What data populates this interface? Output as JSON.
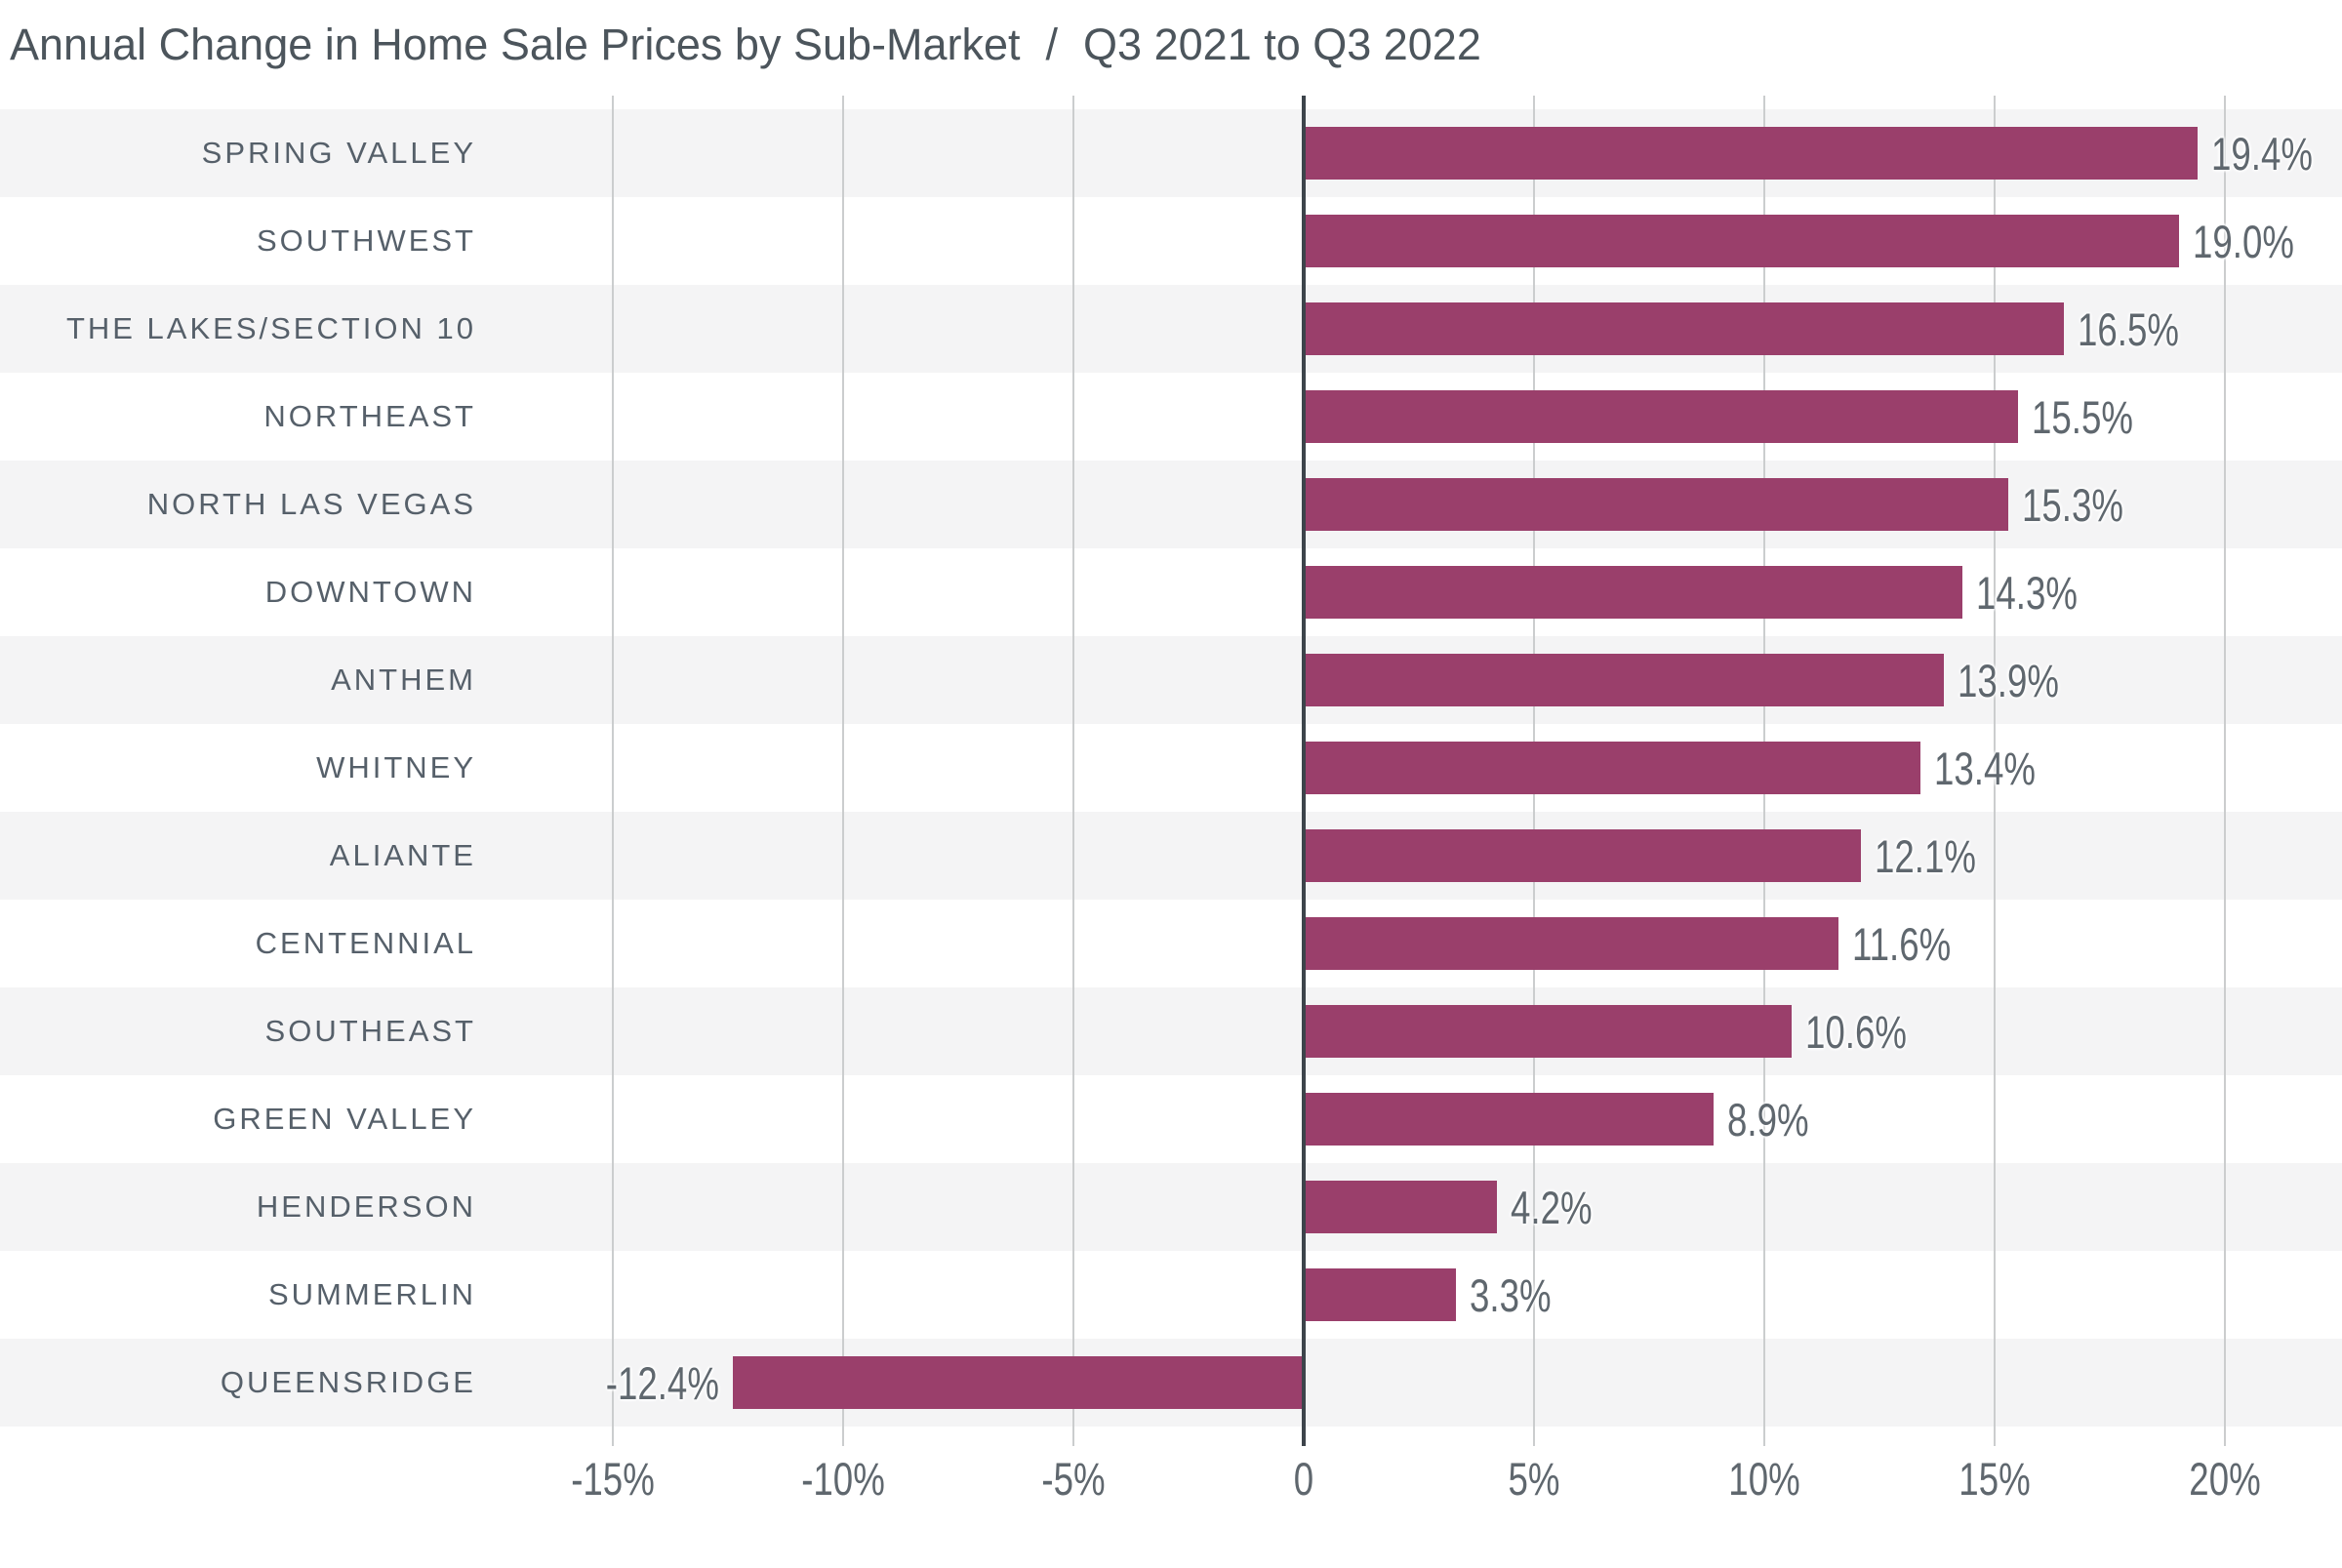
{
  "title": {
    "main": "Annual Change in Home Sale Prices by Sub-Market",
    "separator": "/",
    "period": "Q3 2021 to Q3 2022"
  },
  "chart_data": {
    "type": "bar",
    "orientation": "horizontal",
    "title": "Annual Change in Home Sale Prices by Sub-Market / Q3 2021 to Q3 2022",
    "categories": [
      "SPRING VALLEY",
      "SOUTHWEST",
      "THE LAKES/SECTION 10",
      "NORTHEAST",
      "NORTH LAS VEGAS",
      "DOWNTOWN",
      "ANTHEM",
      "WHITNEY",
      "ALIANTE",
      "CENTENNIAL",
      "SOUTHEAST",
      "GREEN VALLEY",
      "HENDERSON",
      "SUMMERLIN",
      "QUEENSRIDGE"
    ],
    "values": [
      19.4,
      19.0,
      16.5,
      15.5,
      15.3,
      14.3,
      13.9,
      13.4,
      12.1,
      11.6,
      10.6,
      8.9,
      4.2,
      3.3,
      -12.4
    ],
    "value_labels": [
      "19.4%",
      "19.0%",
      "16.5%",
      "15.5%",
      "15.3%",
      "14.3%",
      "13.9%",
      "13.4%",
      "12.1%",
      "11.6%",
      "10.6%",
      "8.9%",
      "4.2%",
      "3.3%",
      "-12.4%"
    ],
    "xlabel": "",
    "ylabel": "",
    "xlim": [
      -17.5,
      22.5
    ],
    "grid": true,
    "legend": "none",
    "zebra_striping": true,
    "axis_ticks": [
      {
        "value": -15,
        "label": "-15%"
      },
      {
        "value": -10,
        "label": "-10%"
      },
      {
        "value": -5,
        "label": "-5%"
      },
      {
        "value": 0,
        "label": "0"
      },
      {
        "value": 5,
        "label": "5%"
      },
      {
        "value": 10,
        "label": "10%"
      },
      {
        "value": 15,
        "label": "15%"
      },
      {
        "value": 20,
        "label": "20%"
      }
    ],
    "colors": {
      "bar": "#9a3f6b",
      "stripe": "#f4f4f5",
      "zero_line": "#3d444b",
      "gridline": "#cbcdce",
      "category_text": "#56606a",
      "value_text": "#5f676e",
      "title_text": "#4c555c"
    }
  }
}
